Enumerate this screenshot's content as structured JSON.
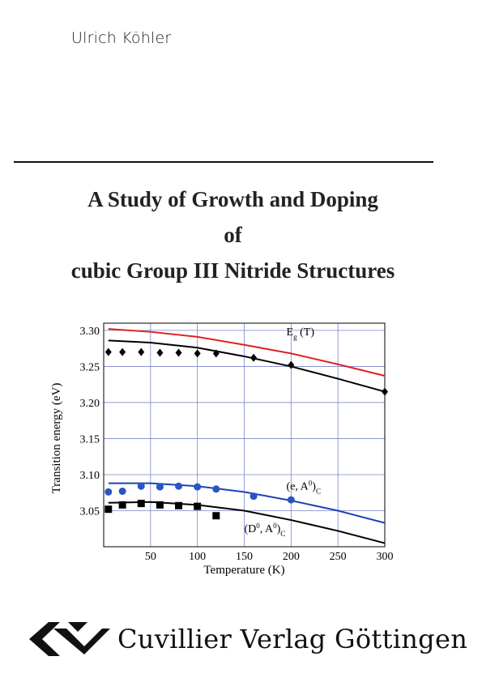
{
  "author": "Ulrich Köhler",
  "title_lines": [
    "A Study of Growth and Doping",
    "of",
    "cubic Group III Nitride Structures"
  ],
  "publisher": "Cuvillier Verlag Göttingen",
  "chart_data": {
    "type": "scatter",
    "xlabel": "Temperature (K)",
    "ylabel": "Transition energy (eV)",
    "xlim": [
      0,
      300
    ],
    "ylim": [
      3.0,
      3.31
    ],
    "x_ticks": [
      50,
      100,
      150,
      200,
      250,
      300
    ],
    "y_ticks": [
      3.05,
      3.1,
      3.15,
      3.2,
      3.25,
      3.3
    ],
    "grid": true,
    "curves": [
      {
        "label": "Eg (T)",
        "color": "#e02020",
        "points": [
          [
            5,
            3.302
          ],
          [
            50,
            3.298
          ],
          [
            100,
            3.291
          ],
          [
            150,
            3.28
          ],
          [
            200,
            3.268
          ],
          [
            250,
            3.253
          ],
          [
            300,
            3.237
          ]
        ]
      },
      {
        "label": "",
        "color": "#000000",
        "points": [
          [
            5,
            3.286
          ],
          [
            50,
            3.283
          ],
          [
            100,
            3.276
          ],
          [
            150,
            3.264
          ],
          [
            200,
            3.25
          ],
          [
            250,
            3.233
          ],
          [
            300,
            3.215
          ]
        ]
      },
      {
        "label": "(e, A0)C",
        "color": "#1a44b8",
        "points": [
          [
            5,
            3.088
          ],
          [
            50,
            3.088
          ],
          [
            100,
            3.084
          ],
          [
            150,
            3.076
          ],
          [
            200,
            3.064
          ],
          [
            250,
            3.05
          ],
          [
            300,
            3.033
          ]
        ]
      },
      {
        "label": "(D0, A0)C",
        "color": "#000000",
        "points": [
          [
            5,
            3.061
          ],
          [
            50,
            3.062
          ],
          [
            100,
            3.058
          ],
          [
            150,
            3.05
          ],
          [
            200,
            3.037
          ],
          [
            250,
            3.022
          ],
          [
            300,
            3.005
          ]
        ]
      }
    ],
    "series": [
      {
        "name": "",
        "marker": "diamond",
        "color": "#000000",
        "points": [
          [
            5,
            3.27
          ],
          [
            20,
            3.27
          ],
          [
            40,
            3.27
          ],
          [
            60,
            3.269
          ],
          [
            80,
            3.269
          ],
          [
            100,
            3.268
          ],
          [
            120,
            3.268
          ],
          [
            160,
            3.262
          ],
          [
            200,
            3.252
          ],
          [
            300,
            3.215
          ]
        ]
      },
      {
        "name": "",
        "marker": "circle",
        "color": "#2a55c4",
        "points": [
          [
            5,
            3.076
          ],
          [
            20,
            3.077
          ],
          [
            40,
            3.084
          ],
          [
            60,
            3.083
          ],
          [
            80,
            3.084
          ],
          [
            100,
            3.083
          ],
          [
            120,
            3.08
          ],
          [
            160,
            3.07
          ],
          [
            200,
            3.065
          ]
        ]
      },
      {
        "name": "",
        "marker": "square",
        "color": "#000000",
        "points": [
          [
            5,
            3.052
          ],
          [
            20,
            3.058
          ],
          [
            40,
            3.06
          ],
          [
            60,
            3.058
          ],
          [
            80,
            3.057
          ],
          [
            100,
            3.056
          ],
          [
            120,
            3.043
          ]
        ]
      }
    ]
  }
}
